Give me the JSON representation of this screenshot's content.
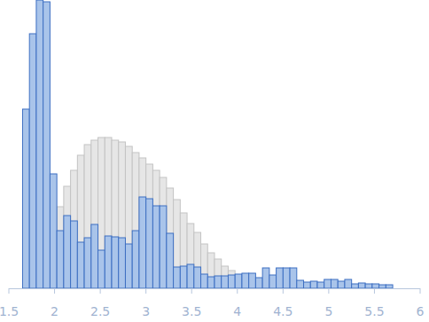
{
  "chart_data": {
    "type": "histogram",
    "bins": [
      1.65,
      1.725,
      1.8,
      1.875,
      1.95,
      2.025,
      2.1,
      2.175,
      2.25,
      2.325,
      2.4,
      2.475,
      2.55,
      2.625,
      2.7,
      2.775,
      2.85,
      2.925,
      3,
      3.075,
      3.15,
      3.225,
      3.3,
      3.375,
      3.45,
      3.525,
      3.6,
      3.675,
      3.75,
      3.825,
      3.9,
      3.975,
      4.05,
      4.125,
      4.2,
      4.275,
      4.35,
      4.425,
      4.5,
      4.575,
      4.65,
      4.725,
      4.8,
      4.875,
      4.95,
      5.025,
      5.1,
      5.175,
      5.25,
      5.325,
      5.4,
      5.475,
      5.55,
      5.625,
      5.7
    ],
    "series": [
      {
        "color": "#e6e6e6",
        "values": [
          3,
          5,
          12,
          27,
          42,
          92,
          115,
          133,
          150,
          162,
          167,
          170,
          170,
          167,
          165,
          160,
          153,
          147,
          140,
          133,
          125,
          113,
          100,
          85,
          73,
          63,
          50,
          40,
          33,
          25,
          20,
          14,
          12,
          9,
          6,
          5,
          3,
          2,
          1,
          0,
          0,
          0,
          0,
          0,
          0,
          0,
          0,
          0,
          0,
          0,
          0,
          0,
          0,
          0
        ]
      },
      {
        "color": "#a9c4ea",
        "values": [
          202,
          287,
          325,
          323,
          129,
          65,
          82,
          76,
          52,
          57,
          72,
          43,
          59,
          58,
          57,
          50,
          65,
          103,
          101,
          93,
          93,
          62,
          24,
          25,
          27,
          24,
          16,
          13,
          14,
          14,
          15,
          16,
          17,
          17,
          12,
          23,
          15,
          23,
          23,
          23,
          9,
          7,
          8,
          7,
          10,
          10,
          8,
          10,
          5,
          6,
          5,
          5,
          4,
          4
        ]
      }
    ],
    "xlim": [
      1.5,
      6
    ],
    "xticks": [
      1.5,
      2,
      2.5,
      3,
      3.5,
      4,
      4.5,
      5,
      5.5,
      6
    ],
    "ylim": [
      0,
      325
    ],
    "tick_labels": "x"
  }
}
